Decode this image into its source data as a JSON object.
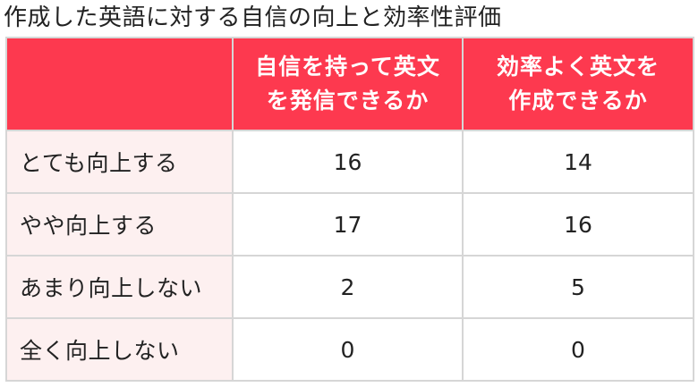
{
  "title": "作成した英語に対する自信の向上と効率性評価",
  "table": {
    "header": {
      "corner": "",
      "columns": [
        {
          "line1": "自信を持って英文",
          "line2": "を発信できるか"
        },
        {
          "line1": "効率よく英文を",
          "line2": "作成できるか"
        }
      ]
    },
    "rows": [
      {
        "label": "とても向上する",
        "values": [
          "16",
          "14"
        ]
      },
      {
        "label": "やや向上する",
        "values": [
          "17",
          "16"
        ]
      },
      {
        "label": "あまり向上しない",
        "values": [
          "2",
          "5"
        ]
      },
      {
        "label": "全く向上しない",
        "values": [
          "0",
          "0"
        ]
      }
    ]
  },
  "colors": {
    "header_background": "#fd394f",
    "label_background": "#fdf0f0",
    "border": "#d6d6d6"
  }
}
